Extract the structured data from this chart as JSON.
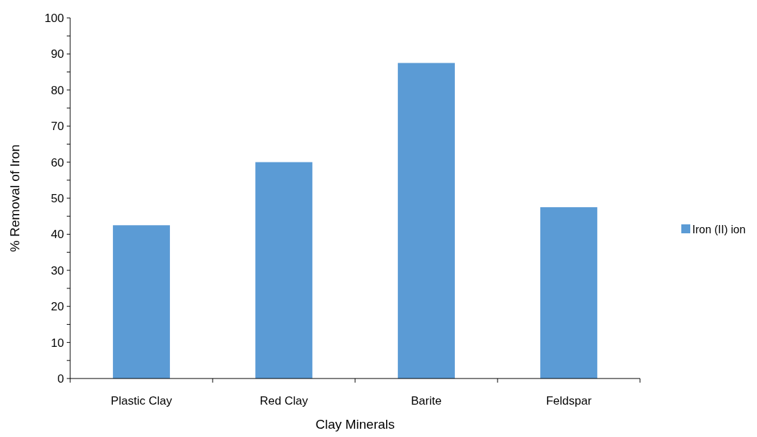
{
  "chart_data": {
    "type": "bar",
    "xlabel": "Clay Minerals",
    "ylabel": "% Removal of Iron",
    "categories": [
      "Plastic Clay",
      "Red Clay",
      "Barite",
      "Feldspar"
    ],
    "series": [
      {
        "name": "Iron (II) ion",
        "color": "#5b9bd5",
        "values": [
          42.5,
          60,
          87.5,
          47.5
        ]
      }
    ],
    "ylim": [
      0,
      100
    ],
    "yticks": [
      0,
      {
        "value": 5,
        "label": null
      },
      10,
      {
        "value": 15,
        "label": null
      },
      20,
      {
        "value": 25,
        "label": null
      },
      30,
      {
        "value": 35,
        "label": null
      },
      40,
      {
        "value": 45,
        "label": null
      },
      50,
      {
        "value": 55,
        "label": null
      },
      60,
      {
        "value": 65,
        "label": null
      },
      70,
      {
        "value": 75,
        "label": null
      },
      80,
      {
        "value": 85,
        "label": null
      },
      90,
      {
        "value": 95,
        "label": null
      },
      100
    ],
    "grid": false,
    "legend": "right"
  }
}
